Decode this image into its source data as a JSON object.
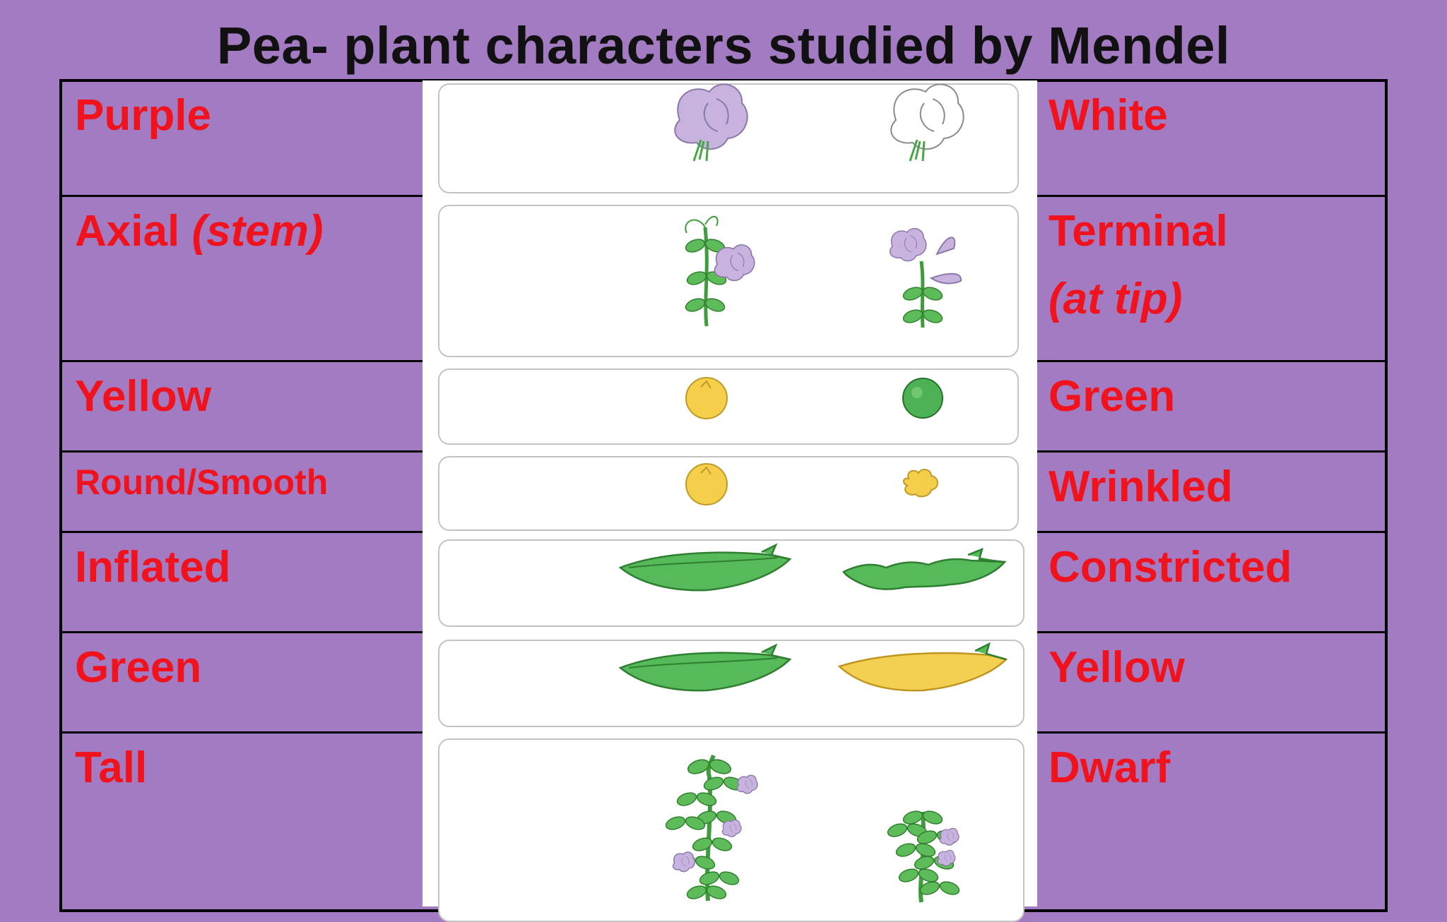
{
  "title": "Pea- plant characters studied by Mendel",
  "rows": [
    {
      "left": "Purple",
      "right": "White"
    },
    {
      "left": "Axial",
      "left_italic": "(stem)",
      "right": "Terminal",
      "right_italic": "(at tip)"
    },
    {
      "left": "Yellow",
      "right": "Green"
    },
    {
      "left": "Round/Smooth",
      "right": "Wrinkled"
    },
    {
      "left": "Inflated",
      "right": "Constricted"
    },
    {
      "left": "Green",
      "right": "Yellow"
    },
    {
      "left": "Tall",
      "right": "Dwarf"
    }
  ],
  "colors": {
    "background": "#a27bc2",
    "label_red": "#f0131e",
    "flower_purple": "#c7b3de",
    "leaf_green": "#5dbb5a",
    "seed_yellow": "#f6cf4a",
    "pod_green": "#56b95a",
    "pod_yellow": "#f3cf52"
  }
}
